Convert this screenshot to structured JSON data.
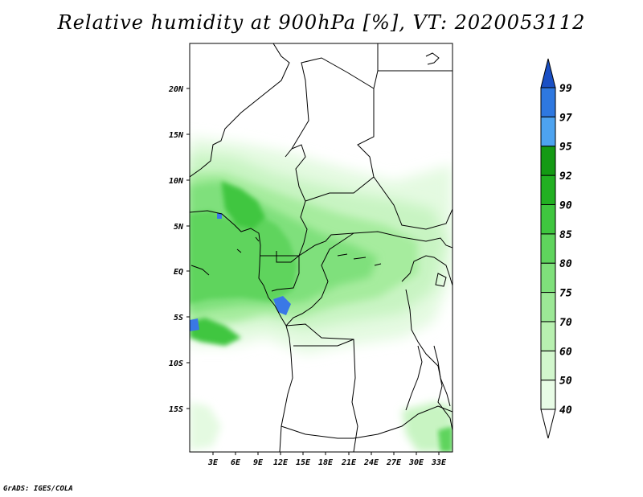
{
  "title": "Relative humidity at 900hPa [%], VT: 2020053112",
  "credit": "GrADS: IGES/COLA",
  "map": {
    "lat_labels": [
      "20N",
      "15N",
      "10N",
      "5N",
      "EQ",
      "5S",
      "10S",
      "15S"
    ],
    "lon_labels": [
      "3E",
      "6E",
      "9E",
      "12E",
      "15E",
      "18E",
      "21E",
      "24E",
      "27E",
      "30E",
      "33E"
    ]
  },
  "colorbar": {
    "levels": [
      "40",
      "50",
      "60",
      "70",
      "75",
      "80",
      "85",
      "90",
      "92",
      "95",
      "97",
      "99"
    ],
    "colors": [
      "#ffffff",
      "#e8fce6",
      "#d2f7cd",
      "#b8f0b0",
      "#9ce896",
      "#7fe07b",
      "#5fd45d",
      "#3fc63f",
      "#22b022",
      "#149a14",
      "#4da3f0",
      "#2e78e0",
      "#1a4fc4"
    ]
  },
  "colors": {
    "coast": "#000000",
    "rain_blue": "#3a78e6"
  }
}
